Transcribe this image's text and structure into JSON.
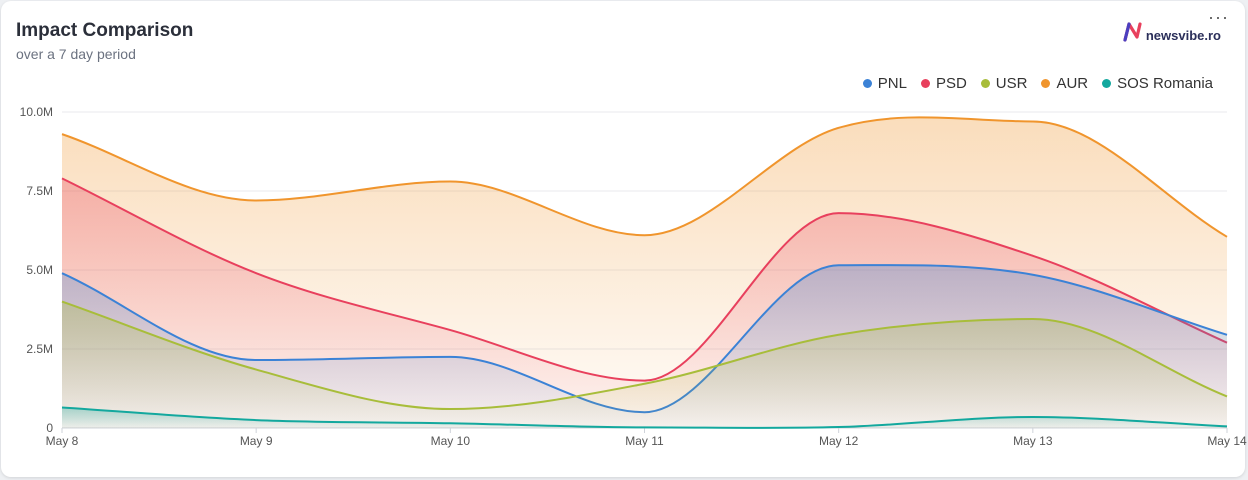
{
  "header": {
    "title": "Impact Comparison",
    "subtitle": "over a 7 day period",
    "brand": "newsvibe.ro",
    "menu": "···"
  },
  "colors": {
    "PNL": "#3b82d6",
    "PSD": "#e8405d",
    "USR": "#a8bd3a",
    "AUR": "#f0952d",
    "SOS Romania": "#13a89e"
  },
  "icons": {
    "brand": "newsvibe-logo-icon",
    "menu": "more-horizontal-icon"
  },
  "chart_data": {
    "type": "area",
    "title": "Impact Comparison",
    "subtitle": "over a 7 day period",
    "x": [
      "May 8",
      "May 9",
      "May 10",
      "May 11",
      "May 12",
      "May 13",
      "May 14"
    ],
    "y_ticks": [
      "0",
      "2.5M",
      "5.0M",
      "7.5M",
      "10.0M"
    ],
    "ylim": [
      0,
      10000000
    ],
    "grid": true,
    "legend": "top-right",
    "series": [
      {
        "name": "PNL",
        "values": [
          4900000,
          2150000,
          2250000,
          500000,
          5150000,
          4850000,
          2950000
        ]
      },
      {
        "name": "PSD",
        "values": [
          7900000,
          4900000,
          3100000,
          1500000,
          6800000,
          5450000,
          2700000
        ]
      },
      {
        "name": "USR",
        "values": [
          4000000,
          1850000,
          600000,
          1400000,
          2950000,
          3450000,
          1000000
        ]
      },
      {
        "name": "AUR",
        "values": [
          9300000,
          7200000,
          7800000,
          6100000,
          9500000,
          9700000,
          6050000
        ]
      },
      {
        "name": "SOS Romania",
        "values": [
          650000,
          250000,
          150000,
          20000,
          30000,
          350000,
          50000
        ]
      }
    ]
  }
}
